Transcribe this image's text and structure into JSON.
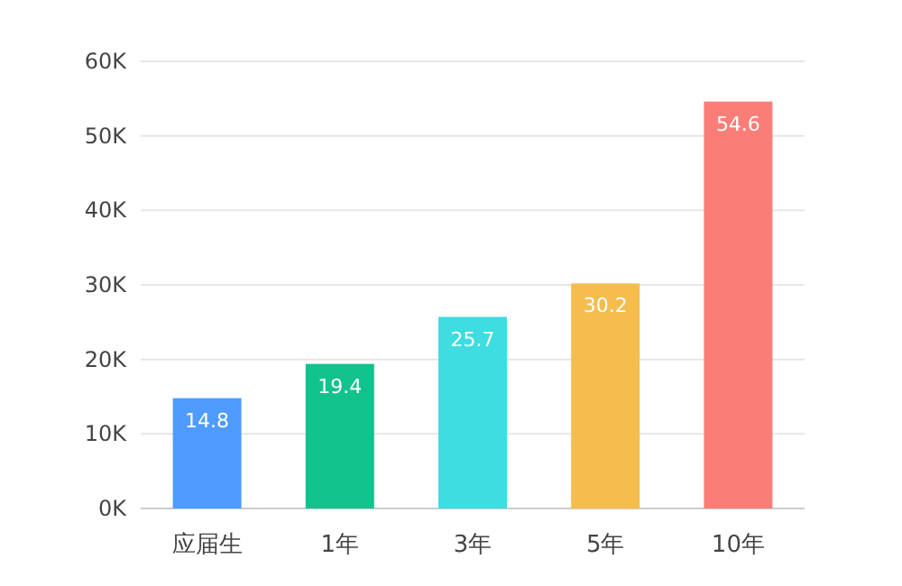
{
  "chart_data": {
    "type": "bar",
    "categories": [
      "应届生",
      "1年",
      "3年",
      "5年",
      "10年"
    ],
    "values": [
      14.8,
      19.4,
      25.7,
      30.2,
      54.6
    ],
    "colors": [
      "#4f9bff",
      "#12c28c",
      "#3ddde2",
      "#f4bd4e",
      "#fa7e77"
    ],
    "ylim": [
      0,
      60
    ],
    "yticks": [
      {
        "value": 0,
        "label": "0K"
      },
      {
        "value": 10,
        "label": "10K"
      },
      {
        "value": 20,
        "label": "20K"
      },
      {
        "value": 30,
        "label": "30K"
      },
      {
        "value": 40,
        "label": "40K"
      },
      {
        "value": 50,
        "label": "50K"
      },
      {
        "value": 60,
        "label": "60K"
      }
    ],
    "grid": "y",
    "data_labels": true
  }
}
